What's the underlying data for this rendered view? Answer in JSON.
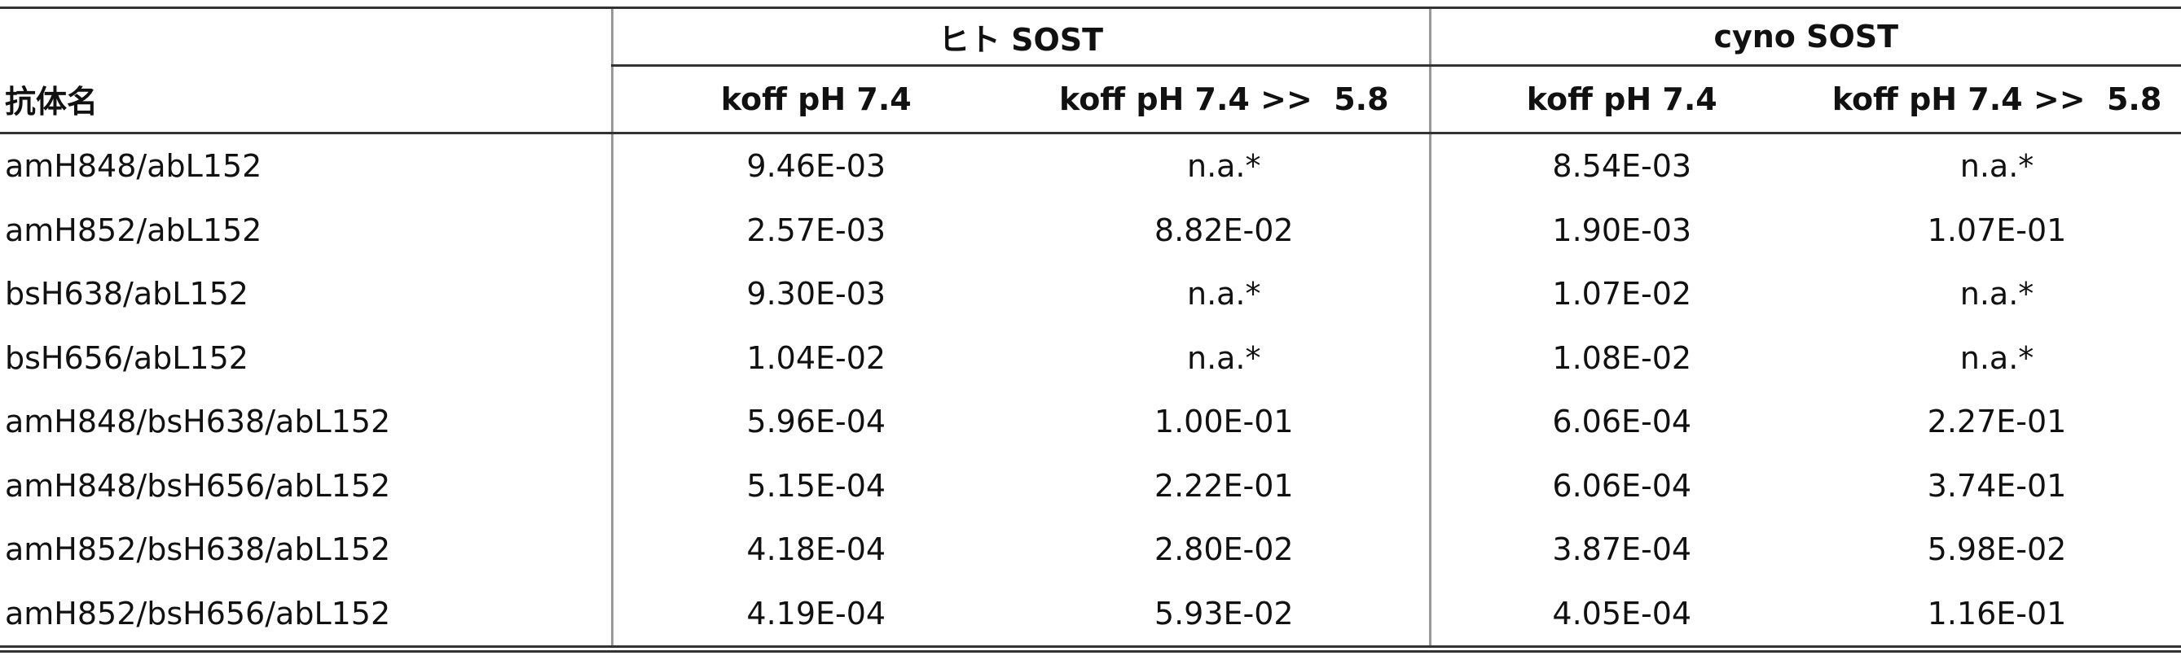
{
  "header": {
    "groups": [
      "ヒト SOST",
      "cyno SOST"
    ],
    "columns": [
      "抗体名",
      "koff pH 7.4",
      "koff pH 7.4 >>  5.8",
      "koff pH 7.4",
      "koff pH 7.4 >>  5.8"
    ]
  },
  "table": {
    "rows": [
      [
        "amH848/abL152",
        "9.46E-03",
        "n.a.*",
        "8.54E-03",
        "n.a.*"
      ],
      [
        "amH852/abL152",
        "2.57E-03",
        "8.82E-02",
        "1.90E-03",
        "1.07E-01"
      ],
      [
        "bsH638/abL152",
        "9.30E-03",
        "n.a.*",
        "1.07E-02",
        "n.a.*"
      ],
      [
        "bsH656/abL152",
        "1.04E-02",
        "n.a.*",
        "1.08E-02",
        "n.a.*"
      ],
      [
        "amH848/bsH638/abL152",
        "5.96E-04",
        "1.00E-01",
        "6.06E-04",
        "2.27E-01"
      ],
      [
        "amH848/bsH656/abL152",
        "5.15E-04",
        "2.22E-01",
        "6.06E-04",
        "3.74E-01"
      ],
      [
        "amH852/bsH638/abL152",
        "4.18E-04",
        "2.80E-02",
        "3.87E-04",
        "5.98E-02"
      ],
      [
        "amH852/bsH656/abL152",
        "4.19E-04",
        "5.93E-02",
        "4.05E-04",
        "1.16E-01"
      ]
    ]
  }
}
